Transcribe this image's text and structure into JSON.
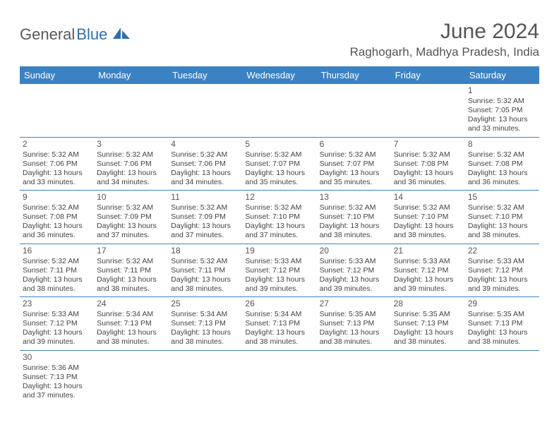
{
  "logo": {
    "part1": "General",
    "part2": "Blue"
  },
  "title": "June 2024",
  "location": "Raghogarh, Madhya Pradesh, India",
  "colors": {
    "header_bg": "#3b82c4",
    "header_text": "#ffffff",
    "rule": "#3b82c4",
    "logo_gray": "#5a5a5a",
    "logo_blue": "#2f6fb0"
  },
  "day_headers": [
    "Sunday",
    "Monday",
    "Tuesday",
    "Wednesday",
    "Thursday",
    "Friday",
    "Saturday"
  ],
  "weeks": [
    [
      null,
      null,
      null,
      null,
      null,
      null,
      {
        "n": "1",
        "sr": "Sunrise: 5:32 AM",
        "ss": "Sunset: 7:05 PM",
        "d1": "Daylight: 13 hours",
        "d2": "and 33 minutes."
      }
    ],
    [
      {
        "n": "2",
        "sr": "Sunrise: 5:32 AM",
        "ss": "Sunset: 7:06 PM",
        "d1": "Daylight: 13 hours",
        "d2": "and 33 minutes."
      },
      {
        "n": "3",
        "sr": "Sunrise: 5:32 AM",
        "ss": "Sunset: 7:06 PM",
        "d1": "Daylight: 13 hours",
        "d2": "and 34 minutes."
      },
      {
        "n": "4",
        "sr": "Sunrise: 5:32 AM",
        "ss": "Sunset: 7:06 PM",
        "d1": "Daylight: 13 hours",
        "d2": "and 34 minutes."
      },
      {
        "n": "5",
        "sr": "Sunrise: 5:32 AM",
        "ss": "Sunset: 7:07 PM",
        "d1": "Daylight: 13 hours",
        "d2": "and 35 minutes."
      },
      {
        "n": "6",
        "sr": "Sunrise: 5:32 AM",
        "ss": "Sunset: 7:07 PM",
        "d1": "Daylight: 13 hours",
        "d2": "and 35 minutes."
      },
      {
        "n": "7",
        "sr": "Sunrise: 5:32 AM",
        "ss": "Sunset: 7:08 PM",
        "d1": "Daylight: 13 hours",
        "d2": "and 36 minutes."
      },
      {
        "n": "8",
        "sr": "Sunrise: 5:32 AM",
        "ss": "Sunset: 7:08 PM",
        "d1": "Daylight: 13 hours",
        "d2": "and 36 minutes."
      }
    ],
    [
      {
        "n": "9",
        "sr": "Sunrise: 5:32 AM",
        "ss": "Sunset: 7:08 PM",
        "d1": "Daylight: 13 hours",
        "d2": "and 36 minutes."
      },
      {
        "n": "10",
        "sr": "Sunrise: 5:32 AM",
        "ss": "Sunset: 7:09 PM",
        "d1": "Daylight: 13 hours",
        "d2": "and 37 minutes."
      },
      {
        "n": "11",
        "sr": "Sunrise: 5:32 AM",
        "ss": "Sunset: 7:09 PM",
        "d1": "Daylight: 13 hours",
        "d2": "and 37 minutes."
      },
      {
        "n": "12",
        "sr": "Sunrise: 5:32 AM",
        "ss": "Sunset: 7:10 PM",
        "d1": "Daylight: 13 hours",
        "d2": "and 37 minutes."
      },
      {
        "n": "13",
        "sr": "Sunrise: 5:32 AM",
        "ss": "Sunset: 7:10 PM",
        "d1": "Daylight: 13 hours",
        "d2": "and 38 minutes."
      },
      {
        "n": "14",
        "sr": "Sunrise: 5:32 AM",
        "ss": "Sunset: 7:10 PM",
        "d1": "Daylight: 13 hours",
        "d2": "and 38 minutes."
      },
      {
        "n": "15",
        "sr": "Sunrise: 5:32 AM",
        "ss": "Sunset: 7:10 PM",
        "d1": "Daylight: 13 hours",
        "d2": "and 38 minutes."
      }
    ],
    [
      {
        "n": "16",
        "sr": "Sunrise: 5:32 AM",
        "ss": "Sunset: 7:11 PM",
        "d1": "Daylight: 13 hours",
        "d2": "and 38 minutes."
      },
      {
        "n": "17",
        "sr": "Sunrise: 5:32 AM",
        "ss": "Sunset: 7:11 PM",
        "d1": "Daylight: 13 hours",
        "d2": "and 38 minutes."
      },
      {
        "n": "18",
        "sr": "Sunrise: 5:32 AM",
        "ss": "Sunset: 7:11 PM",
        "d1": "Daylight: 13 hours",
        "d2": "and 38 minutes."
      },
      {
        "n": "19",
        "sr": "Sunrise: 5:33 AM",
        "ss": "Sunset: 7:12 PM",
        "d1": "Daylight: 13 hours",
        "d2": "and 39 minutes."
      },
      {
        "n": "20",
        "sr": "Sunrise: 5:33 AM",
        "ss": "Sunset: 7:12 PM",
        "d1": "Daylight: 13 hours",
        "d2": "and 39 minutes."
      },
      {
        "n": "21",
        "sr": "Sunrise: 5:33 AM",
        "ss": "Sunset: 7:12 PM",
        "d1": "Daylight: 13 hours",
        "d2": "and 39 minutes."
      },
      {
        "n": "22",
        "sr": "Sunrise: 5:33 AM",
        "ss": "Sunset: 7:12 PM",
        "d1": "Daylight: 13 hours",
        "d2": "and 39 minutes."
      }
    ],
    [
      {
        "n": "23",
        "sr": "Sunrise: 5:33 AM",
        "ss": "Sunset: 7:12 PM",
        "d1": "Daylight: 13 hours",
        "d2": "and 39 minutes."
      },
      {
        "n": "24",
        "sr": "Sunrise: 5:34 AM",
        "ss": "Sunset: 7:13 PM",
        "d1": "Daylight: 13 hours",
        "d2": "and 38 minutes."
      },
      {
        "n": "25",
        "sr": "Sunrise: 5:34 AM",
        "ss": "Sunset: 7:13 PM",
        "d1": "Daylight: 13 hours",
        "d2": "and 38 minutes."
      },
      {
        "n": "26",
        "sr": "Sunrise: 5:34 AM",
        "ss": "Sunset: 7:13 PM",
        "d1": "Daylight: 13 hours",
        "d2": "and 38 minutes."
      },
      {
        "n": "27",
        "sr": "Sunrise: 5:35 AM",
        "ss": "Sunset: 7:13 PM",
        "d1": "Daylight: 13 hours",
        "d2": "and 38 minutes."
      },
      {
        "n": "28",
        "sr": "Sunrise: 5:35 AM",
        "ss": "Sunset: 7:13 PM",
        "d1": "Daylight: 13 hours",
        "d2": "and 38 minutes."
      },
      {
        "n": "29",
        "sr": "Sunrise: 5:35 AM",
        "ss": "Sunset: 7:13 PM",
        "d1": "Daylight: 13 hours",
        "d2": "and 38 minutes."
      }
    ],
    [
      {
        "n": "30",
        "sr": "Sunrise: 5:36 AM",
        "ss": "Sunset: 7:13 PM",
        "d1": "Daylight: 13 hours",
        "d2": "and 37 minutes."
      },
      null,
      null,
      null,
      null,
      null,
      null
    ]
  ]
}
